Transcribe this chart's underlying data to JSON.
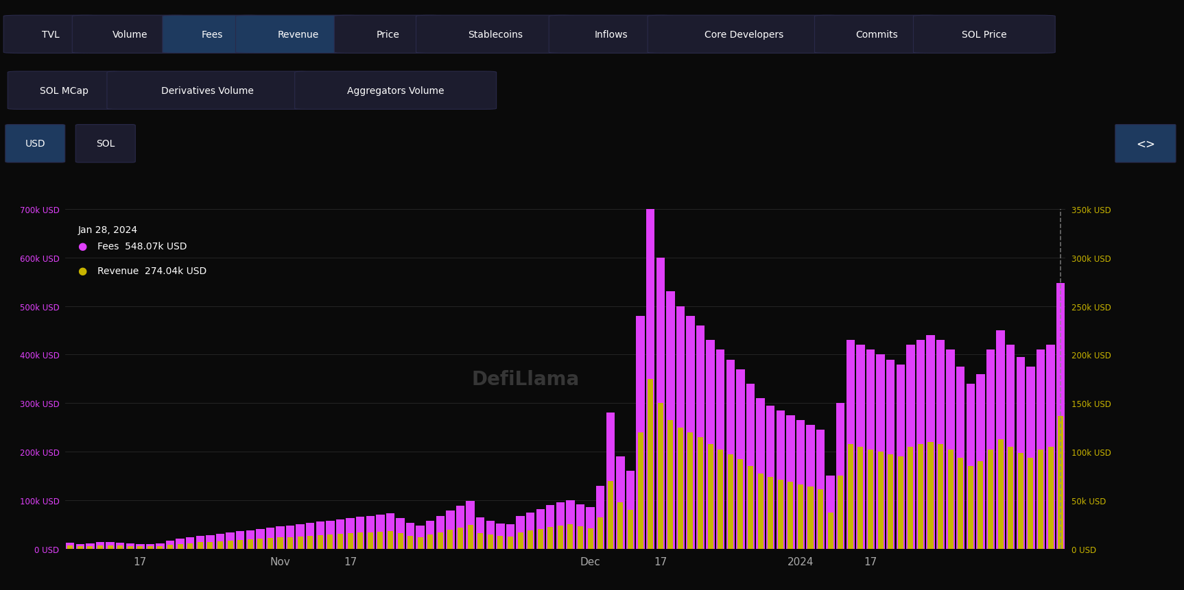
{
  "background_color": "#0a0a0a",
  "nav_buttons": [
    "TVL",
    "Volume",
    "Fees",
    "Revenue",
    "Price",
    "Stablecoins",
    "Inflows",
    "Core Developers",
    "Commits",
    "SOL Price"
  ],
  "nav_buttons_active": [
    "Fees",
    "Revenue"
  ],
  "nav_buttons2": [
    "SOL MCap",
    "Derivatives Volume",
    "Aggregators Volume"
  ],
  "currency_buttons": [
    "USD",
    "SOL"
  ],
  "currency_active": "USD",
  "annotation_date": "Jan 28, 2024",
  "annotation_fees": "Fees  548.07k USD",
  "annotation_revenue": "Revenue  274.04k USD",
  "fees_color": "#e040fb",
  "revenue_color": "#c8b400",
  "left_ytick_labels": [
    "0 USD",
    "100k USD",
    "200k USD",
    "300k USD",
    "400k USD",
    "500k USD",
    "600k USD",
    "700k USD"
  ],
  "left_ytick_vals": [
    0,
    100000,
    200000,
    300000,
    400000,
    500000,
    600000,
    700000
  ],
  "right_ytick_labels": [
    "0 USD",
    "50k USD",
    "100k USD",
    "150k USD",
    "200k USD",
    "250k USD",
    "300k USD",
    "350k USD"
  ],
  "right_ytick_vals": [
    0,
    50000,
    100000,
    150000,
    200000,
    250000,
    300000,
    350000
  ],
  "grid_color": "#2a2a2a",
  "fees_data": [
    12000,
    10000,
    11000,
    13000,
    14000,
    12000,
    11000,
    10000,
    10000,
    11000,
    16000,
    20000,
    23000,
    26000,
    28000,
    30000,
    33000,
    36000,
    38000,
    40000,
    43000,
    46000,
    48000,
    50000,
    53000,
    56000,
    58000,
    60000,
    63000,
    66000,
    68000,
    70000,
    73000,
    63000,
    53000,
    48000,
    58000,
    68000,
    78000,
    88000,
    98000,
    65000,
    58000,
    52000,
    50000,
    68000,
    75000,
    82000,
    90000,
    95000,
    100000,
    92000,
    85000,
    130000,
    280000,
    190000,
    160000,
    480000,
    700000,
    600000,
    530000,
    500000,
    480000,
    460000,
    430000,
    410000,
    390000,
    370000,
    340000,
    310000,
    295000,
    285000,
    275000,
    265000,
    255000,
    245000,
    150000,
    300000,
    430000,
    420000,
    410000,
    400000,
    390000,
    380000,
    420000,
    430000,
    440000,
    430000,
    410000,
    375000,
    340000,
    360000,
    410000,
    450000,
    420000,
    395000,
    375000,
    410000,
    420000,
    548000
  ],
  "revenue_data": [
    6000,
    5000,
    5500,
    6500,
    7000,
    6000,
    5500,
    5000,
    5000,
    5500,
    8000,
    10000,
    11500,
    13000,
    14000,
    15000,
    16500,
    18000,
    19000,
    20000,
    21500,
    23000,
    24000,
    25000,
    26500,
    28000,
    29000,
    30000,
    31500,
    33000,
    34000,
    35000,
    36500,
    31500,
    26500,
    24000,
    29000,
    34000,
    39000,
    44000,
    49000,
    32500,
    29000,
    26000,
    25000,
    34000,
    37500,
    41000,
    45000,
    47500,
    50000,
    46000,
    42500,
    65000,
    140000,
    95000,
    80000,
    240000,
    350000,
    300000,
    265000,
    250000,
    240000,
    230000,
    215000,
    205000,
    195000,
    185000,
    170000,
    155000,
    147500,
    142500,
    137500,
    132500,
    127500,
    122500,
    75000,
    150000,
    215000,
    210000,
    205000,
    200000,
    195000,
    190000,
    210000,
    215000,
    220000,
    215000,
    205000,
    187500,
    170000,
    180000,
    205000,
    225000,
    210000,
    197500,
    187500,
    205000,
    210000,
    274000
  ]
}
